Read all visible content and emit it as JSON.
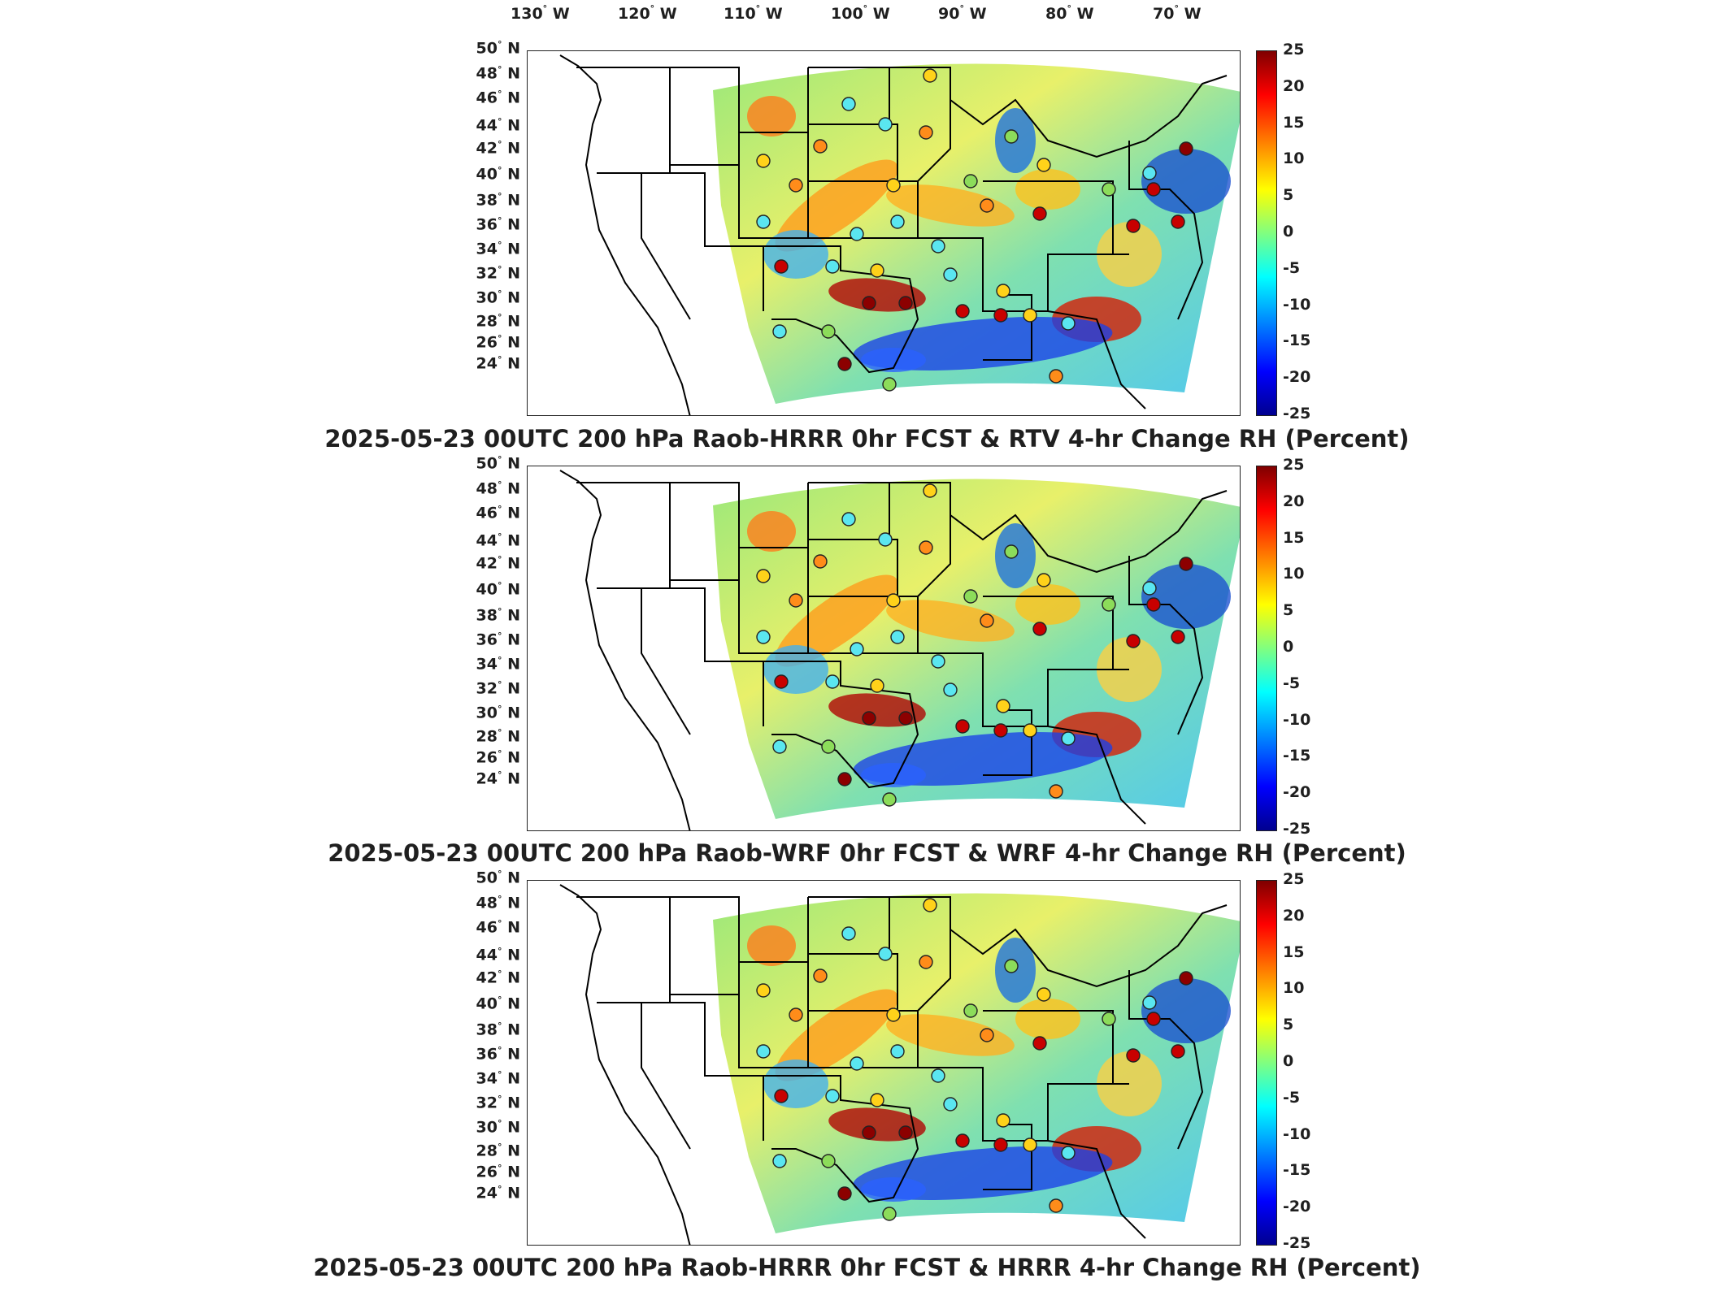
{
  "lon_labels": [
    {
      "deg": "130",
      "dir": "W"
    },
    {
      "deg": "120",
      "dir": "W"
    },
    {
      "deg": "110",
      "dir": "W"
    },
    {
      "deg": "100",
      "dir": "W"
    },
    {
      "deg": "90",
      "dir": "W"
    },
    {
      "deg": "80",
      "dir": "W"
    },
    {
      "deg": "70",
      "dir": "W"
    }
  ],
  "lat_labels": [
    {
      "deg": "50",
      "dir": "N"
    },
    {
      "deg": "48",
      "dir": "N"
    },
    {
      "deg": "46",
      "dir": "N"
    },
    {
      "deg": "44",
      "dir": "N"
    },
    {
      "deg": "42",
      "dir": "N"
    },
    {
      "deg": "40",
      "dir": "N"
    },
    {
      "deg": "38",
      "dir": "N"
    },
    {
      "deg": "36",
      "dir": "N"
    },
    {
      "deg": "34",
      "dir": "N"
    },
    {
      "deg": "32",
      "dir": "N"
    },
    {
      "deg": "30",
      "dir": "N"
    },
    {
      "deg": "28",
      "dir": "N"
    },
    {
      "deg": "26",
      "dir": "N"
    },
    {
      "deg": "24",
      "dir": "N"
    }
  ],
  "colorbar": {
    "ticks": [
      "25",
      "20",
      "15",
      "10",
      "5",
      "0",
      "-5",
      "-10",
      "-15",
      "-20",
      "-25"
    ],
    "min": -25,
    "max": 25
  },
  "panels": [
    {
      "title": "2025-05-23 00UTC 200 hPa Raob-HRRR 0hr FCST & RTV 4-hr Change RH (Percent)"
    },
    {
      "title": "2025-05-23 00UTC 200 hPa Raob-WRF 0hr FCST & WRF 4-hr Change RH (Percent)"
    },
    {
      "title": "2025-05-23 00UTC 200 hPa Raob-HRRR 0hr FCST & HRRR 4-hr Change RH (Percent)"
    }
  ],
  "colors": {
    "red": "#c80000",
    "orange": "#ff8c1a",
    "yellow": "#ffd21a",
    "cyan": "#5ae6f0",
    "blue": "#1a50ff",
    "green": "#8cdc5a",
    "darkred": "#8c0000"
  }
}
